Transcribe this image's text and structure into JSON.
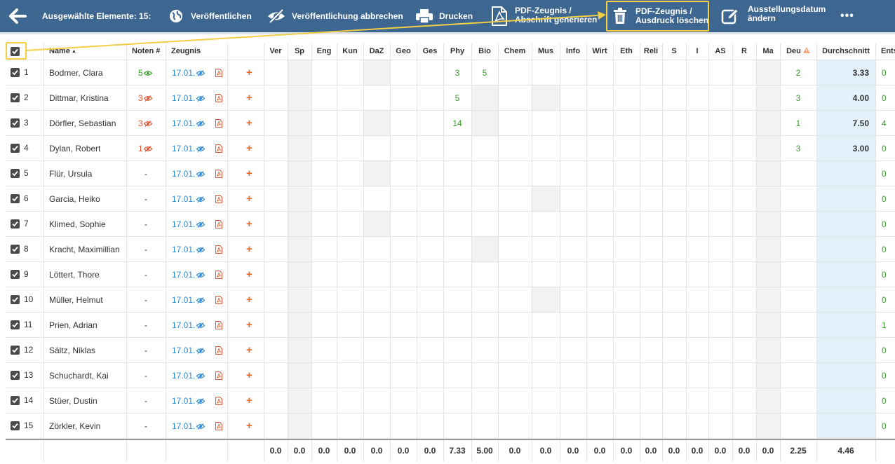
{
  "toolbar": {
    "selected_label": "Ausgewählte Elemente: 15:",
    "publish": "Veröffentlichen",
    "unpublish": "Veröffentlichung abbrechen",
    "print": "Drucken",
    "pdf_copy_line1": "PDF-Zeugnis /",
    "pdf_copy_line2": "Abschrift generieren",
    "pdf_delete_line1": "PDF-Zeugnis /",
    "pdf_delete_line2": "Ausdruck löschen",
    "date_line1": "Ausstellungsdatum",
    "date_line2": "ändern",
    "more": "•••"
  },
  "columns": {
    "name": "Name",
    "grades": "Noten #",
    "report": "Zeugnis",
    "subjects": [
      "Ver",
      "Sp",
      "Eng",
      "Kun",
      "DaZ",
      "Geo",
      "Ges",
      "Phy",
      "Bio",
      "Chem",
      "Mus",
      "Info",
      "Wirt",
      "Eth",
      "Reli",
      "S",
      "I",
      "AS",
      "R",
      "Ma",
      "Deu"
    ],
    "average": "Durchschnitt",
    "last": "Ents"
  },
  "rows": [
    {
      "n": "1",
      "name": "Bodmer, Clara",
      "grades": "5",
      "grade_state": "published",
      "date": "17.01.",
      "phy": "3",
      "bio": "5",
      "deu": "2",
      "avg": "3.33",
      "last": "0"
    },
    {
      "n": "2",
      "name": "Dittmar, Kristina",
      "grades": "3",
      "grade_state": "hidden",
      "date": "17.01.",
      "phy": "5",
      "bio": "",
      "deu": "3",
      "avg": "4.00",
      "last": "0"
    },
    {
      "n": "3",
      "name": "Dörfler, Sebastian",
      "grades": "3",
      "grade_state": "hidden",
      "date": "17.01.",
      "phy": "14",
      "bio": "",
      "deu": "1",
      "avg": "7.50",
      "last": "4"
    },
    {
      "n": "4",
      "name": "Dylan, Robert",
      "grades": "1",
      "grade_state": "hidden",
      "date": "17.01.",
      "phy": "",
      "bio": "",
      "deu": "3",
      "avg": "3.00",
      "last": "0"
    },
    {
      "n": "5",
      "name": "Flür, Ursula",
      "grades": "-",
      "grade_state": "none",
      "date": "17.01.",
      "phy": "",
      "bio": "",
      "deu": "",
      "avg": "",
      "last": "0"
    },
    {
      "n": "6",
      "name": "Garcia, Heiko",
      "grades": "-",
      "grade_state": "none",
      "date": "17.01.",
      "phy": "",
      "bio": "",
      "deu": "",
      "avg": "",
      "last": "0"
    },
    {
      "n": "7",
      "name": "Klimed, Sophie",
      "grades": "-",
      "grade_state": "none",
      "date": "17.01.",
      "phy": "",
      "bio": "",
      "deu": "",
      "avg": "",
      "last": "0"
    },
    {
      "n": "8",
      "name": "Kracht, Maximillian",
      "grades": "-",
      "grade_state": "none",
      "date": "17.01.",
      "phy": "",
      "bio": "",
      "deu": "",
      "avg": "",
      "last": "0"
    },
    {
      "n": "9",
      "name": "Löttert, Thore",
      "grades": "-",
      "grade_state": "none",
      "date": "17.01.",
      "phy": "",
      "bio": "",
      "deu": "",
      "avg": "",
      "last": "0"
    },
    {
      "n": "10",
      "name": "Müller, Helmut",
      "grades": "-",
      "grade_state": "none",
      "date": "17.01.",
      "phy": "",
      "bio": "",
      "deu": "",
      "avg": "",
      "last": "0"
    },
    {
      "n": "11",
      "name": "Prien, Adrian",
      "grades": "-",
      "grade_state": "none",
      "date": "17.01.",
      "phy": "",
      "bio": "",
      "deu": "",
      "avg": "",
      "last": "1"
    },
    {
      "n": "12",
      "name": "Sältz, Niklas",
      "grades": "-",
      "grade_state": "none",
      "date": "17.01.",
      "phy": "",
      "bio": "",
      "deu": "",
      "avg": "",
      "last": "0"
    },
    {
      "n": "13",
      "name": "Schuchardt, Kai",
      "grades": "-",
      "grade_state": "none",
      "date": "17.01.",
      "phy": "",
      "bio": "",
      "deu": "",
      "avg": "",
      "last": "0"
    },
    {
      "n": "14",
      "name": "Stüer, Dustin",
      "grades": "-",
      "grade_state": "none",
      "date": "17.01.",
      "phy": "",
      "bio": "",
      "deu": "",
      "avg": "",
      "last": "0"
    },
    {
      "n": "15",
      "name": "Zörkler, Kevin",
      "grades": "-",
      "grade_state": "none",
      "date": "17.01.",
      "phy": "",
      "bio": "",
      "deu": "",
      "avg": "",
      "last": "0"
    }
  ],
  "totals": {
    "subjects": [
      "0.0",
      "0.0",
      "0.0",
      "0.0",
      "0.0",
      "0.0",
      "0.0",
      "7.33",
      "5.00",
      "0.0",
      "0.0",
      "0.0",
      "0.0",
      "0.0",
      "0.0",
      "0.0",
      "0.0",
      "0.0",
      "0.0",
      "0.0",
      "2.25"
    ],
    "average": "4.46"
  },
  "colors": {
    "toolbar_bg": "#3d6690",
    "highlight": "#f2cf45",
    "grade_green": "#3a9a2c",
    "grade_red": "#e05533",
    "link_blue": "#2a8ad4",
    "add_orange": "#f06a2d",
    "average_bg": "#e3f1fb"
  },
  "icons": {
    "back": "arrow-left-icon",
    "publish": "globe-icon",
    "unpublish": "eye-slash-icon",
    "print": "printer-icon",
    "pdf": "pdf-file-icon",
    "delete": "trash-icon",
    "edit": "edit-icon",
    "warning": "warning-triangle-icon"
  }
}
